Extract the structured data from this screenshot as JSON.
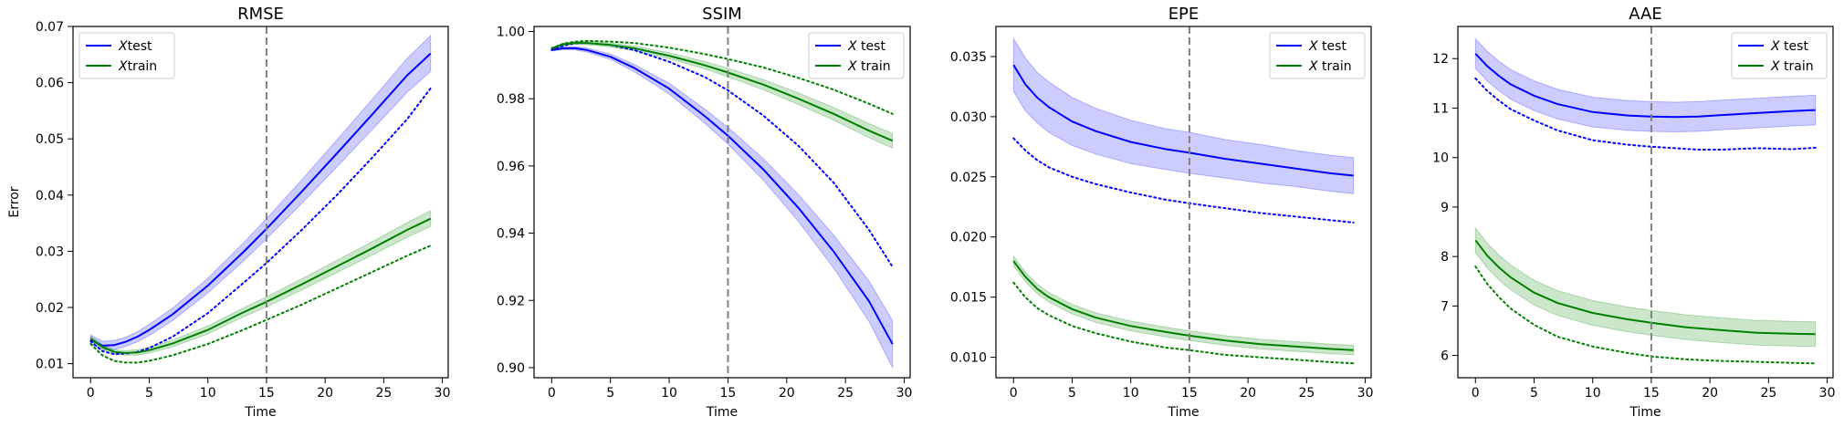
{
  "chart_data": [
    {
      "type": "line",
      "title": "RMSE",
      "xlabel": "Time",
      "ylabel": "Error",
      "xlim": [
        -1.5,
        30.5
      ],
      "ylim": [
        0.0075,
        0.07
      ],
      "xticks": [
        0,
        5,
        10,
        15,
        20,
        25,
        30
      ],
      "yticks": [
        0.01,
        0.02,
        0.03,
        0.04,
        0.05,
        0.06,
        0.07
      ],
      "ytick_format": 2,
      "vline": 15,
      "legend_position": "top-left",
      "legend": [
        "Xtest",
        "Xtrain"
      ],
      "series": [
        {
          "name": "Xtest",
          "color": "#0000ff",
          "x": [
            0,
            1,
            2,
            3,
            4,
            5,
            7,
            10,
            13,
            15,
            18,
            21,
            24,
            27,
            29
          ],
          "mean": [
            0.0143,
            0.0132,
            0.0133,
            0.0139,
            0.0148,
            0.016,
            0.0188,
            0.0239,
            0.0298,
            0.034,
            0.0406,
            0.0474,
            0.0543,
            0.0613,
            0.0652
          ],
          "band": [
            0.0008,
            0.0008,
            0.0008,
            0.0008,
            0.0009,
            0.001,
            0.0011,
            0.0013,
            0.0016,
            0.0018,
            0.0021,
            0.0024,
            0.0027,
            0.003,
            0.0032
          ],
          "dotted": [
            0.014,
            0.0122,
            0.0117,
            0.0118,
            0.0121,
            0.0128,
            0.0148,
            0.019,
            0.0243,
            0.0279,
            0.0338,
            0.04,
            0.0466,
            0.0535,
            0.059
          ]
        },
        {
          "name": "Xtrain",
          "color": "#008000",
          "x": [
            0,
            1,
            2,
            3,
            4,
            5,
            7,
            10,
            13,
            15,
            18,
            21,
            24,
            27,
            29
          ],
          "mean": [
            0.0145,
            0.013,
            0.0121,
            0.0119,
            0.012,
            0.0124,
            0.0136,
            0.016,
            0.0191,
            0.021,
            0.0241,
            0.0273,
            0.0305,
            0.0338,
            0.0358
          ],
          "band": [
            0.0004,
            0.0004,
            0.0004,
            0.0004,
            0.0005,
            0.0005,
            0.0006,
            0.0007,
            0.0008,
            0.0009,
            0.001,
            0.0011,
            0.0012,
            0.0013,
            0.0014
          ],
          "dotted": [
            0.0135,
            0.0115,
            0.0105,
            0.0102,
            0.0102,
            0.0105,
            0.0115,
            0.0135,
            0.016,
            0.0178,
            0.0205,
            0.0234,
            0.0263,
            0.0292,
            0.031
          ]
        }
      ]
    },
    {
      "type": "line",
      "title": "SSIM",
      "xlabel": "Time",
      "ylabel": "",
      "xlim": [
        -1.5,
        30.5
      ],
      "ylim": [
        0.897,
        1.0015
      ],
      "xticks": [
        0,
        5,
        10,
        15,
        20,
        25,
        30
      ],
      "yticks": [
        0.9,
        0.92,
        0.94,
        0.96,
        0.98,
        1.0
      ],
      "ytick_format": 2,
      "vline": 15,
      "legend_position": "top-right",
      "legend": [
        "X test",
        "X train"
      ],
      "series": [
        {
          "name": "X test",
          "color": "#0000ff",
          "x": [
            0,
            1,
            2,
            3,
            5,
            7,
            10,
            13,
            15,
            18,
            21,
            24,
            27,
            29
          ],
          "mean": [
            0.9945,
            0.995,
            0.995,
            0.9945,
            0.9925,
            0.9892,
            0.983,
            0.9749,
            0.969,
            0.959,
            0.9475,
            0.9345,
            0.9198,
            0.907
          ],
          "band": [
            0.0003,
            0.0004,
            0.0005,
            0.0006,
            0.0008,
            0.0011,
            0.0016,
            0.0021,
            0.0025,
            0.0032,
            0.004,
            0.0049,
            0.006,
            0.007
          ],
          "dotted": [
            0.9945,
            0.9958,
            0.9965,
            0.9966,
            0.996,
            0.9945,
            0.991,
            0.9865,
            0.9825,
            0.975,
            0.966,
            0.955,
            0.941,
            0.93
          ]
        },
        {
          "name": "X train",
          "color": "#008000",
          "x": [
            0,
            1,
            2,
            3,
            5,
            7,
            10,
            13,
            15,
            18,
            21,
            24,
            27,
            29
          ],
          "mean": [
            0.995,
            0.9962,
            0.9966,
            0.9966,
            0.996,
            0.995,
            0.9928,
            0.99,
            0.9878,
            0.9842,
            0.98,
            0.9755,
            0.9705,
            0.9675
          ],
          "band": [
            0.0002,
            0.0003,
            0.0004,
            0.0005,
            0.0006,
            0.0007,
            0.0009,
            0.0011,
            0.0013,
            0.0015,
            0.0017,
            0.0019,
            0.0021,
            0.0022
          ],
          "dotted": [
            0.995,
            0.9964,
            0.997,
            0.9972,
            0.997,
            0.9966,
            0.9952,
            0.9933,
            0.9918,
            0.9893,
            0.9862,
            0.9827,
            0.9785,
            0.9755
          ]
        }
      ]
    },
    {
      "type": "line",
      "title": "EPE",
      "xlabel": "Time",
      "ylabel": "",
      "xlim": [
        -1.5,
        30.5
      ],
      "ylim": [
        0.0083,
        0.0375
      ],
      "xticks": [
        0,
        5,
        10,
        15,
        20,
        25,
        30
      ],
      "yticks": [
        0.01,
        0.015,
        0.02,
        0.025,
        0.03,
        0.035
      ],
      "ytick_format": 3,
      "vline": 15,
      "legend_position": "top-right",
      "legend": [
        "X test",
        "X train"
      ],
      "series": [
        {
          "name": "X test",
          "color": "#0000ff",
          "x": [
            0,
            1,
            2,
            3,
            5,
            7,
            10,
            13,
            15,
            18,
            21,
            24,
            27,
            29
          ],
          "mean": [
            0.0343,
            0.0327,
            0.0316,
            0.0308,
            0.0296,
            0.0288,
            0.0279,
            0.0273,
            0.027,
            0.0265,
            0.0261,
            0.0257,
            0.0253,
            0.0251
          ],
          "band": [
            0.0022,
            0.0022,
            0.0021,
            0.0021,
            0.002,
            0.0019,
            0.0018,
            0.0017,
            0.0017,
            0.0016,
            0.0016,
            0.0015,
            0.0015,
            0.0015
          ],
          "dotted": [
            0.0282,
            0.0272,
            0.0264,
            0.0258,
            0.025,
            0.0244,
            0.0237,
            0.0231,
            0.0228,
            0.0224,
            0.022,
            0.0217,
            0.0214,
            0.0212
          ]
        },
        {
          "name": "X train",
          "color": "#008000",
          "x": [
            0,
            1,
            2,
            3,
            5,
            7,
            10,
            13,
            15,
            18,
            21,
            24,
            27,
            29
          ],
          "mean": [
            0.018,
            0.0167,
            0.0157,
            0.015,
            0.014,
            0.0133,
            0.0126,
            0.0121,
            0.0118,
            0.0114,
            0.0111,
            0.0109,
            0.0107,
            0.0106
          ],
          "band": [
            0.0004,
            0.0004,
            0.0004,
            0.0004,
            0.0004,
            0.0004,
            0.0004,
            0.0004,
            0.0004,
            0.0004,
            0.0004,
            0.0004,
            0.0004,
            0.0004
          ],
          "dotted": [
            0.0162,
            0.015,
            0.0141,
            0.0135,
            0.0126,
            0.012,
            0.0113,
            0.0108,
            0.0106,
            0.0102,
            0.01,
            0.0098,
            0.0096,
            0.0095
          ]
        }
      ]
    },
    {
      "type": "line",
      "title": "AAE",
      "xlabel": "Time",
      "ylabel": "",
      "xlim": [
        -1.5,
        30.5
      ],
      "ylim": [
        5.55,
        12.65
      ],
      "xticks": [
        0,
        5,
        10,
        15,
        20,
        25,
        30
      ],
      "yticks": [
        6,
        7,
        8,
        9,
        10,
        11,
        12
      ],
      "ytick_format": 0,
      "vline": 15,
      "legend_position": "top-right",
      "legend": [
        "X test",
        "X train"
      ],
      "series": [
        {
          "name": "X test",
          "color": "#0000ff",
          "x": [
            0,
            1,
            2,
            3,
            5,
            7,
            10,
            13,
            15,
            17,
            19,
            21,
            24,
            27,
            29
          ],
          "mean": [
            12.1,
            11.85,
            11.65,
            11.48,
            11.25,
            11.08,
            10.92,
            10.85,
            10.83,
            10.82,
            10.83,
            10.86,
            10.9,
            10.94,
            10.96
          ],
          "band": [
            0.3,
            0.3,
            0.3,
            0.3,
            0.3,
            0.3,
            0.3,
            0.3,
            0.3,
            0.3,
            0.3,
            0.3,
            0.3,
            0.3,
            0.3
          ],
          "dotted": [
            11.6,
            11.35,
            11.15,
            10.98,
            10.75,
            10.55,
            10.35,
            10.26,
            10.22,
            10.19,
            10.16,
            10.16,
            10.19,
            10.17,
            10.2
          ]
        },
        {
          "name": "X train",
          "color": "#008000",
          "x": [
            0,
            1,
            2,
            3,
            5,
            7,
            10,
            13,
            15,
            18,
            21,
            24,
            27,
            29
          ],
          "mean": [
            8.33,
            8.02,
            7.78,
            7.58,
            7.27,
            7.06,
            6.86,
            6.73,
            6.66,
            6.57,
            6.51,
            6.46,
            6.44,
            6.43
          ],
          "band": [
            0.25,
            0.25,
            0.25,
            0.25,
            0.25,
            0.25,
            0.25,
            0.25,
            0.25,
            0.25,
            0.25,
            0.25,
            0.25,
            0.25
          ],
          "dotted": [
            7.8,
            7.45,
            7.18,
            6.95,
            6.62,
            6.38,
            6.18,
            6.05,
            5.98,
            5.92,
            5.89,
            5.87,
            5.85,
            5.84
          ]
        }
      ]
    }
  ]
}
